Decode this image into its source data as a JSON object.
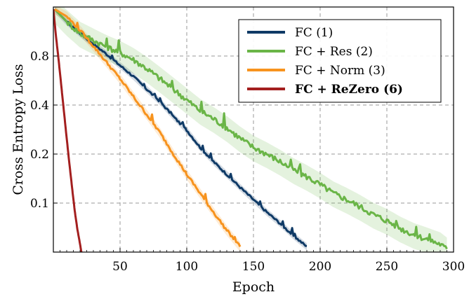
{
  "chart_data": {
    "type": "line",
    "title": "",
    "xlabel": "Epoch",
    "ylabel": "Cross Entropy Loss",
    "xlim": [
      0,
      300
    ],
    "ylim_log": [
      0.05,
      1.6
    ],
    "y_scale": "log",
    "x_ticks": [
      50,
      100,
      150,
      200,
      250,
      300
    ],
    "y_ticks": [
      0.1,
      0.2,
      0.4,
      0.8
    ],
    "y_tick_labels": [
      "0.1",
      "0.2",
      "0.4",
      "0.8"
    ],
    "grid": true,
    "legend_position": "top-right",
    "series": [
      {
        "name": "FC (1)",
        "color": "#0f3a66",
        "bold": false,
        "x": [
          1,
          10,
          20,
          30,
          40,
          50,
          60,
          70,
          80,
          90,
          100,
          110,
          120,
          130,
          140,
          150,
          160,
          170,
          180,
          190
        ],
        "y": [
          1.55,
          1.3,
          1.1,
          0.95,
          0.82,
          0.7,
          0.6,
          0.5,
          0.42,
          0.34,
          0.28,
          0.22,
          0.18,
          0.15,
          0.125,
          0.105,
          0.088,
          0.075,
          0.063,
          0.054
        ],
        "band": 0.05,
        "noise": 0.03
      },
      {
        "name": "FC + Res (2)",
        "color": "#6ab547",
        "bold": false,
        "x": [
          1,
          10,
          20,
          30,
          40,
          50,
          60,
          70,
          80,
          90,
          100,
          110,
          120,
          130,
          140,
          150,
          160,
          170,
          180,
          190,
          200,
          210,
          220,
          230,
          240,
          250,
          260,
          270,
          280,
          290,
          295
        ],
        "y": [
          1.55,
          1.3,
          1.1,
          1.0,
          0.91,
          0.84,
          0.76,
          0.67,
          0.58,
          0.5,
          0.43,
          0.37,
          0.33,
          0.29,
          0.25,
          0.22,
          0.2,
          0.18,
          0.16,
          0.145,
          0.13,
          0.115,
          0.105,
          0.095,
          0.085,
          0.078,
          0.07,
          0.064,
          0.06,
          0.056,
          0.052
        ],
        "band": 0.18,
        "noise": 0.08
      },
      {
        "name": "FC + Norm (3)",
        "color": "#f7931e",
        "bold": false,
        "x": [
          1,
          10,
          20,
          30,
          40,
          50,
          60,
          70,
          80,
          90,
          100,
          110,
          120,
          130,
          140
        ],
        "y": [
          1.55,
          1.4,
          1.15,
          0.92,
          0.73,
          0.58,
          0.45,
          0.35,
          0.27,
          0.2,
          0.15,
          0.115,
          0.088,
          0.068,
          0.054
        ],
        "band": 0.07,
        "noise": 0.04
      },
      {
        "name": "FC + ReZero (6)",
        "color": "#a31f1f",
        "bold": true,
        "x": [
          0,
          2,
          4,
          6,
          8,
          10,
          12,
          14,
          16,
          18,
          20,
          21
        ],
        "y": [
          1.55,
          1.05,
          0.75,
          0.52,
          0.36,
          0.25,
          0.175,
          0.125,
          0.09,
          0.069,
          0.056,
          0.05
        ],
        "band": 0.02,
        "noise": 0.0
      }
    ]
  }
}
